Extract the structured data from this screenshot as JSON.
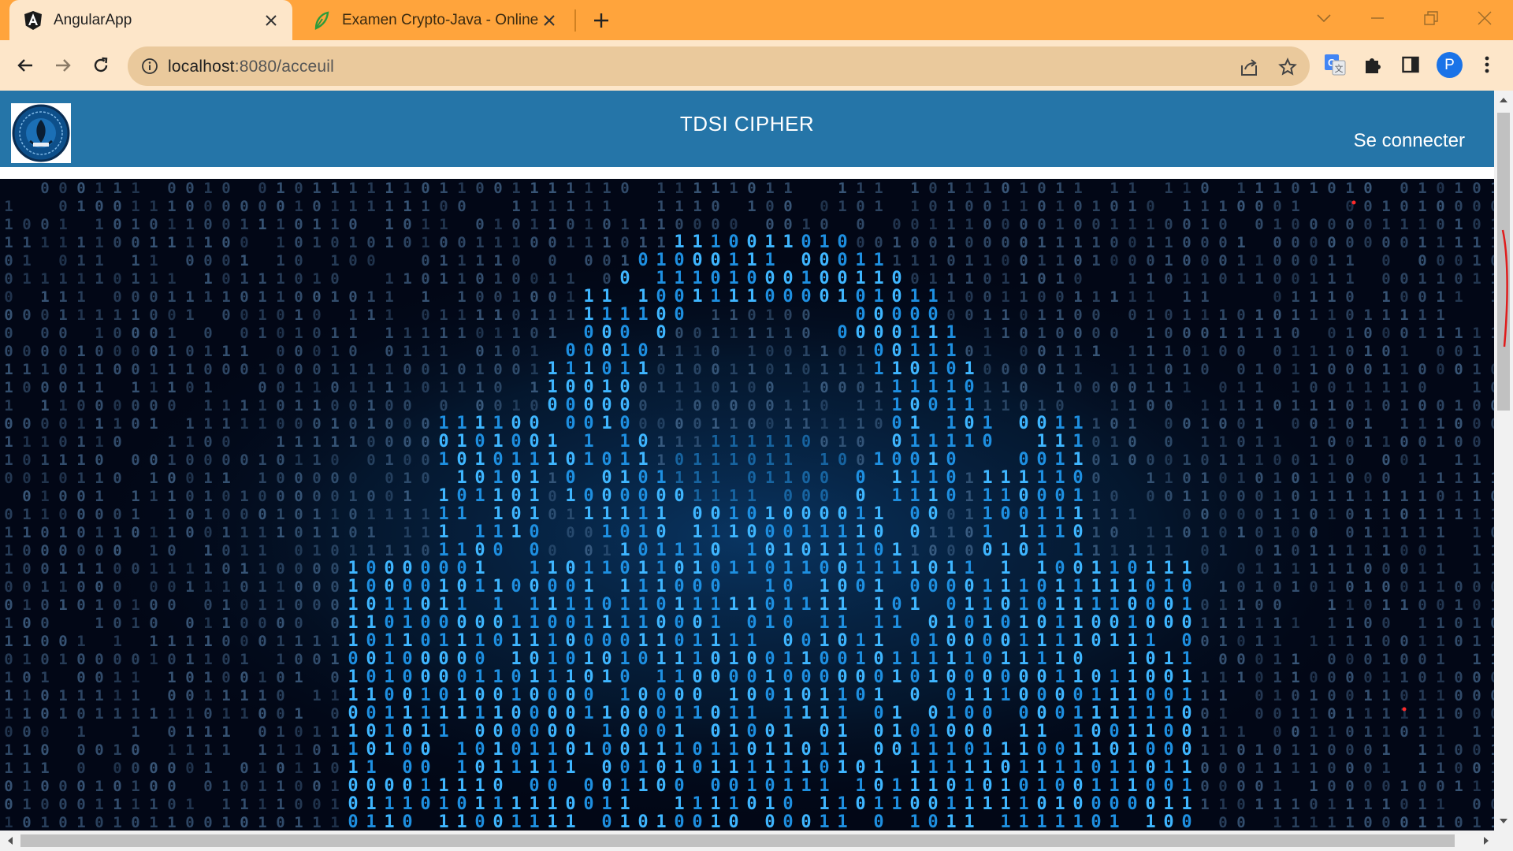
{
  "browser": {
    "tabs": [
      {
        "title": "AngularApp",
        "active": true,
        "icon": "angular-icon"
      },
      {
        "title": "Examen Crypto-Java - Online La",
        "active": false,
        "icon": "leaf-icon"
      }
    ],
    "address": {
      "host": "localhost",
      "path": ":8080/acceuil"
    },
    "profile_initial": "P"
  },
  "page": {
    "brand": "TDSI CIPHER",
    "login_label": "Se connecter"
  },
  "colors": {
    "tabstrip": "#ffa43c",
    "toolbar": "#fde6c9",
    "navbar": "#2575a8",
    "hero_bg": "#020716",
    "digit_glow": "#3fb6ff"
  }
}
